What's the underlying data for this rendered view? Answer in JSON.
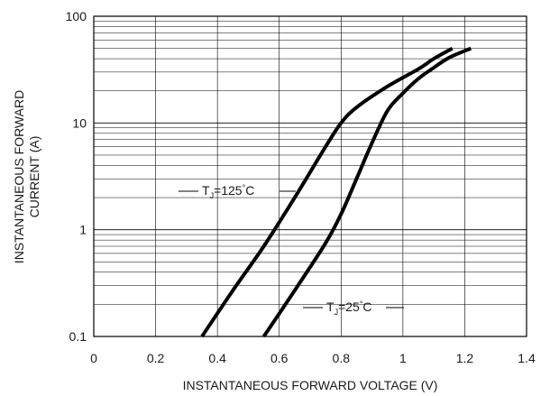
{
  "chart_data": {
    "type": "line",
    "xlabel": "INSTANTANEOUS FORWARD VOLTAGE (V)",
    "ylabel_line1": "INSTANTANEOUS FORWARD",
    "ylabel_line2": "CURRENT (A)",
    "xlim": [
      0,
      1.4
    ],
    "ylim": [
      0.1,
      100
    ],
    "y_scale": "log",
    "grid": true,
    "x_ticks": [
      0,
      0.2,
      0.4,
      0.6,
      0.8,
      1,
      1.2,
      1.4
    ],
    "x_tick_labels": [
      "0",
      "0.2",
      "0.4",
      "0.6",
      "0.8",
      "1",
      "1.2",
      "1.4"
    ],
    "y_ticks": [
      0.1,
      1,
      10,
      100
    ],
    "y_tick_labels": [
      "0.1",
      "1",
      "10",
      "100"
    ],
    "colors": {
      "line": "#000000",
      "grid": "#000000",
      "background": "#ffffff"
    },
    "series": [
      {
        "annotation": {
          "prefix": "T",
          "subscript": "J",
          "suffix": "=125",
          "degree": "°",
          "unit": "C"
        },
        "x": [
          0.35,
          0.45,
          0.55,
          0.65,
          0.75,
          0.8,
          0.85,
          0.95,
          1.05,
          1.1,
          1.16
        ],
        "y": [
          0.1,
          0.27,
          0.7,
          2.0,
          6.0,
          10.0,
          14.0,
          22.0,
          32.0,
          40.0,
          50.0
        ]
      },
      {
        "annotation": {
          "prefix": "T",
          "subscript": "J",
          "suffix": "=25",
          "degree": "°",
          "unit": "C"
        },
        "x": [
          0.55,
          0.65,
          0.75,
          0.8,
          0.85,
          0.9,
          0.95,
          1.0,
          1.05,
          1.1,
          1.15,
          1.22
        ],
        "y": [
          0.1,
          0.27,
          0.75,
          1.4,
          3.0,
          6.5,
          13.0,
          19.0,
          26.0,
          33.0,
          41.0,
          50.0
        ]
      }
    ]
  }
}
